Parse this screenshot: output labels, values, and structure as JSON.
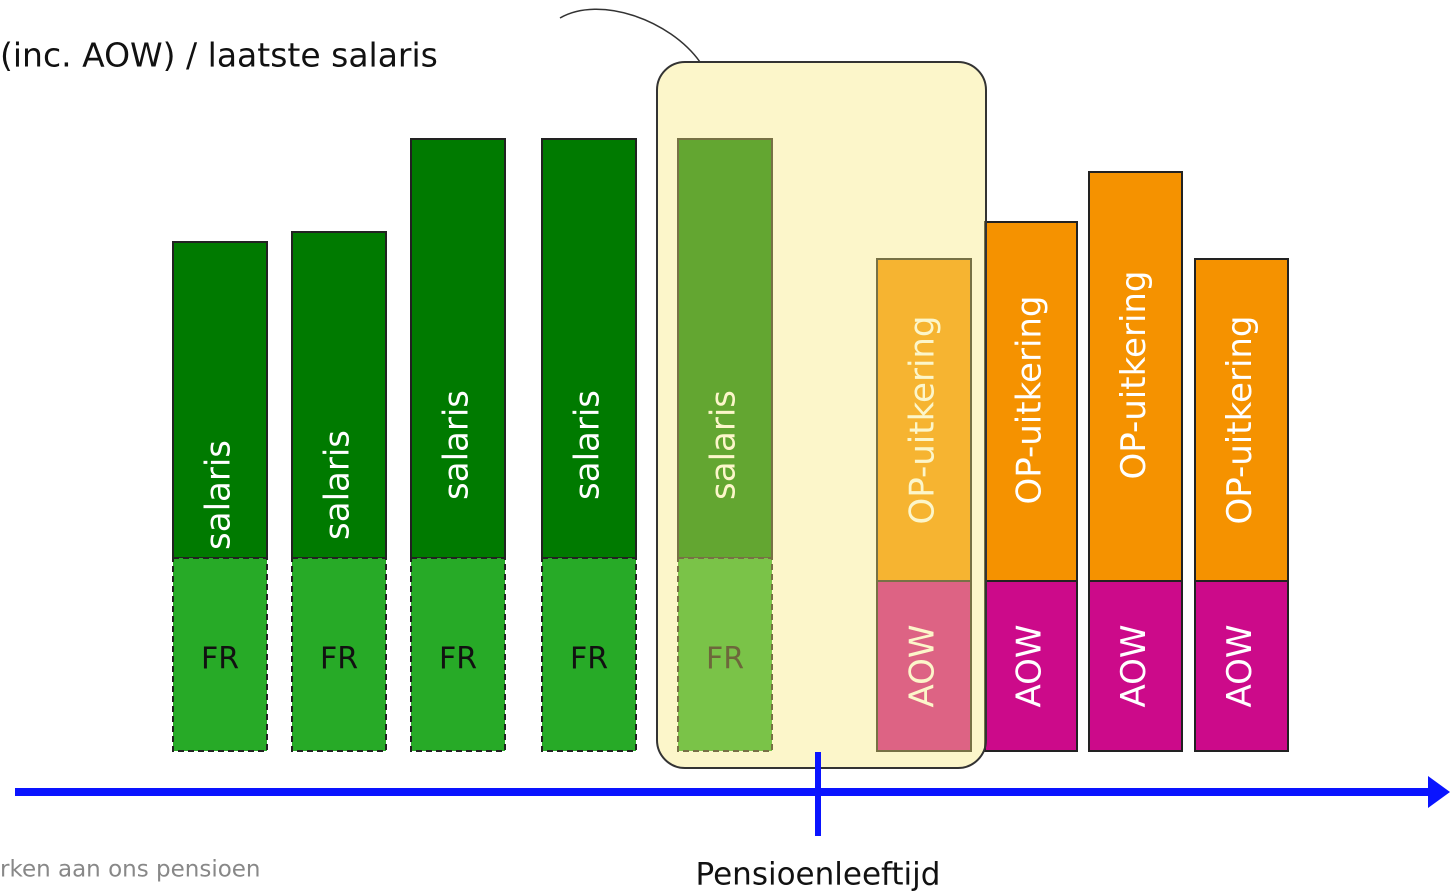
{
  "header": {
    "title": "(inc. AOW) / laatste salaris"
  },
  "bars": [
    {
      "top": "salaris",
      "bottom": "FR"
    },
    {
      "top": "salaris",
      "bottom": "FR"
    },
    {
      "top": "salaris",
      "bottom": "FR"
    },
    {
      "top": "salaris",
      "bottom": "FR"
    },
    {
      "top": "salaris",
      "bottom": "FR"
    },
    {
      "top": "OP-uitkering",
      "bottom": "AOW"
    },
    {
      "top": "OP-uitkering",
      "bottom": "AOW"
    },
    {
      "top": "OP-uitkering",
      "bottom": "AOW"
    },
    {
      "top": "OP-uitkering",
      "bottom": "AOW"
    }
  ],
  "axis": {
    "label": "Pensioenleeftijd"
  },
  "footer": "rken aan ons pensioen"
}
